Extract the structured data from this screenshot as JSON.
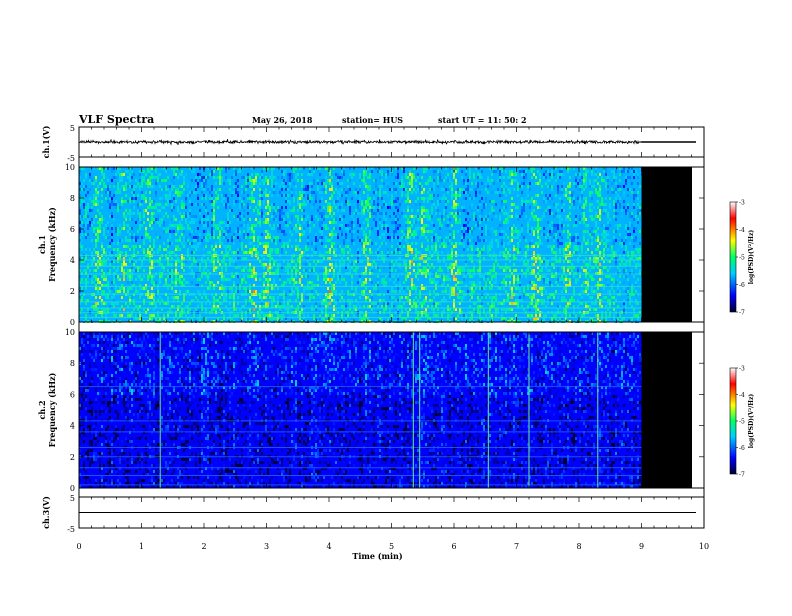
{
  "header": {
    "title": "VLF Spectra",
    "date": "May 26, 2018",
    "station": "station= HUS",
    "start": "start  UT  =   11: 50: 2"
  },
  "colorbar": {
    "label": "log(PSD)(V²/Hz)",
    "ticks": [
      "-3",
      "-4",
      "-5",
      "-6",
      "-7"
    ],
    "colors": [
      "#ffffff",
      "#ff0000",
      "#ffff00",
      "#00ff66",
      "#00ccff",
      "#0000ff",
      "#000033"
    ]
  },
  "chart_data": [
    {
      "type": "line",
      "panel": "ch1-waveform",
      "ylabel": "ch.1(V)",
      "ylim": [
        -5,
        5
      ],
      "yticks": [
        "5",
        "-5"
      ],
      "xlim": [
        0,
        10
      ],
      "series": [
        {
          "x": [
            0,
            1,
            2,
            3,
            4,
            5,
            6,
            7,
            8,
            9
          ],
          "values": [
            0,
            0,
            0,
            0,
            0,
            0,
            0,
            0,
            0,
            0
          ]
        }
      ],
      "data_end_min": 9.0
    },
    {
      "type": "heatmap",
      "panel": "ch1-spectrogram",
      "ylabel": "ch.1\nFrequency (kHz)",
      "ylim": [
        0,
        10
      ],
      "yticks": [
        "0",
        "2",
        "4",
        "6",
        "8",
        "10"
      ],
      "xlim": [
        0,
        10
      ],
      "zlim": [
        -7,
        -3
      ],
      "data_end_min": 9.0,
      "background_log_psd": -5.7,
      "enhanced_bursts_min": [
        0.3,
        0.7,
        1.1,
        1.6,
        2.2,
        2.8,
        3.0,
        3.5,
        4.0,
        4.6,
        5.3,
        5.5,
        6.0,
        6.9,
        7.3,
        7.8,
        8.1,
        8.3
      ],
      "horizontal_lines_khz": [
        0.3,
        0.6,
        0.9,
        1.3,
        1.8,
        2.3,
        3.1,
        3.6,
        4.0,
        4.3
      ]
    },
    {
      "type": "heatmap",
      "panel": "ch2-spectrogram",
      "ylabel": "ch.2\nFrequency (kHz)",
      "ylim": [
        0,
        10
      ],
      "yticks": [
        "0",
        "2",
        "4",
        "6",
        "8",
        "10"
      ],
      "xlim": [
        0,
        10
      ],
      "zlim": [
        -7,
        -3
      ],
      "data_end_min": 9.0,
      "background_log_psd": -6.4,
      "sferic_lines_min": [
        1.3,
        5.35,
        5.45,
        6.55,
        7.2,
        8.3
      ],
      "horizontal_lines_khz": [
        0.2,
        0.8,
        1.3,
        2.0,
        2.6,
        3.6,
        4.3,
        6.5
      ]
    },
    {
      "type": "line",
      "panel": "ch3-waveform",
      "ylabel": "ch.3(V)",
      "ylim": [
        -5,
        5
      ],
      "yticks": [
        "5",
        "-5"
      ],
      "xlim": [
        0,
        10
      ],
      "series": [
        {
          "x": [
            0,
            10
          ],
          "values": [
            0,
            0
          ]
        }
      ]
    }
  ],
  "xaxis": {
    "label": "Time  (min)",
    "ticks": [
      "0",
      "1",
      "2",
      "3",
      "4",
      "5",
      "6",
      "7",
      "8",
      "9",
      "10"
    ]
  }
}
